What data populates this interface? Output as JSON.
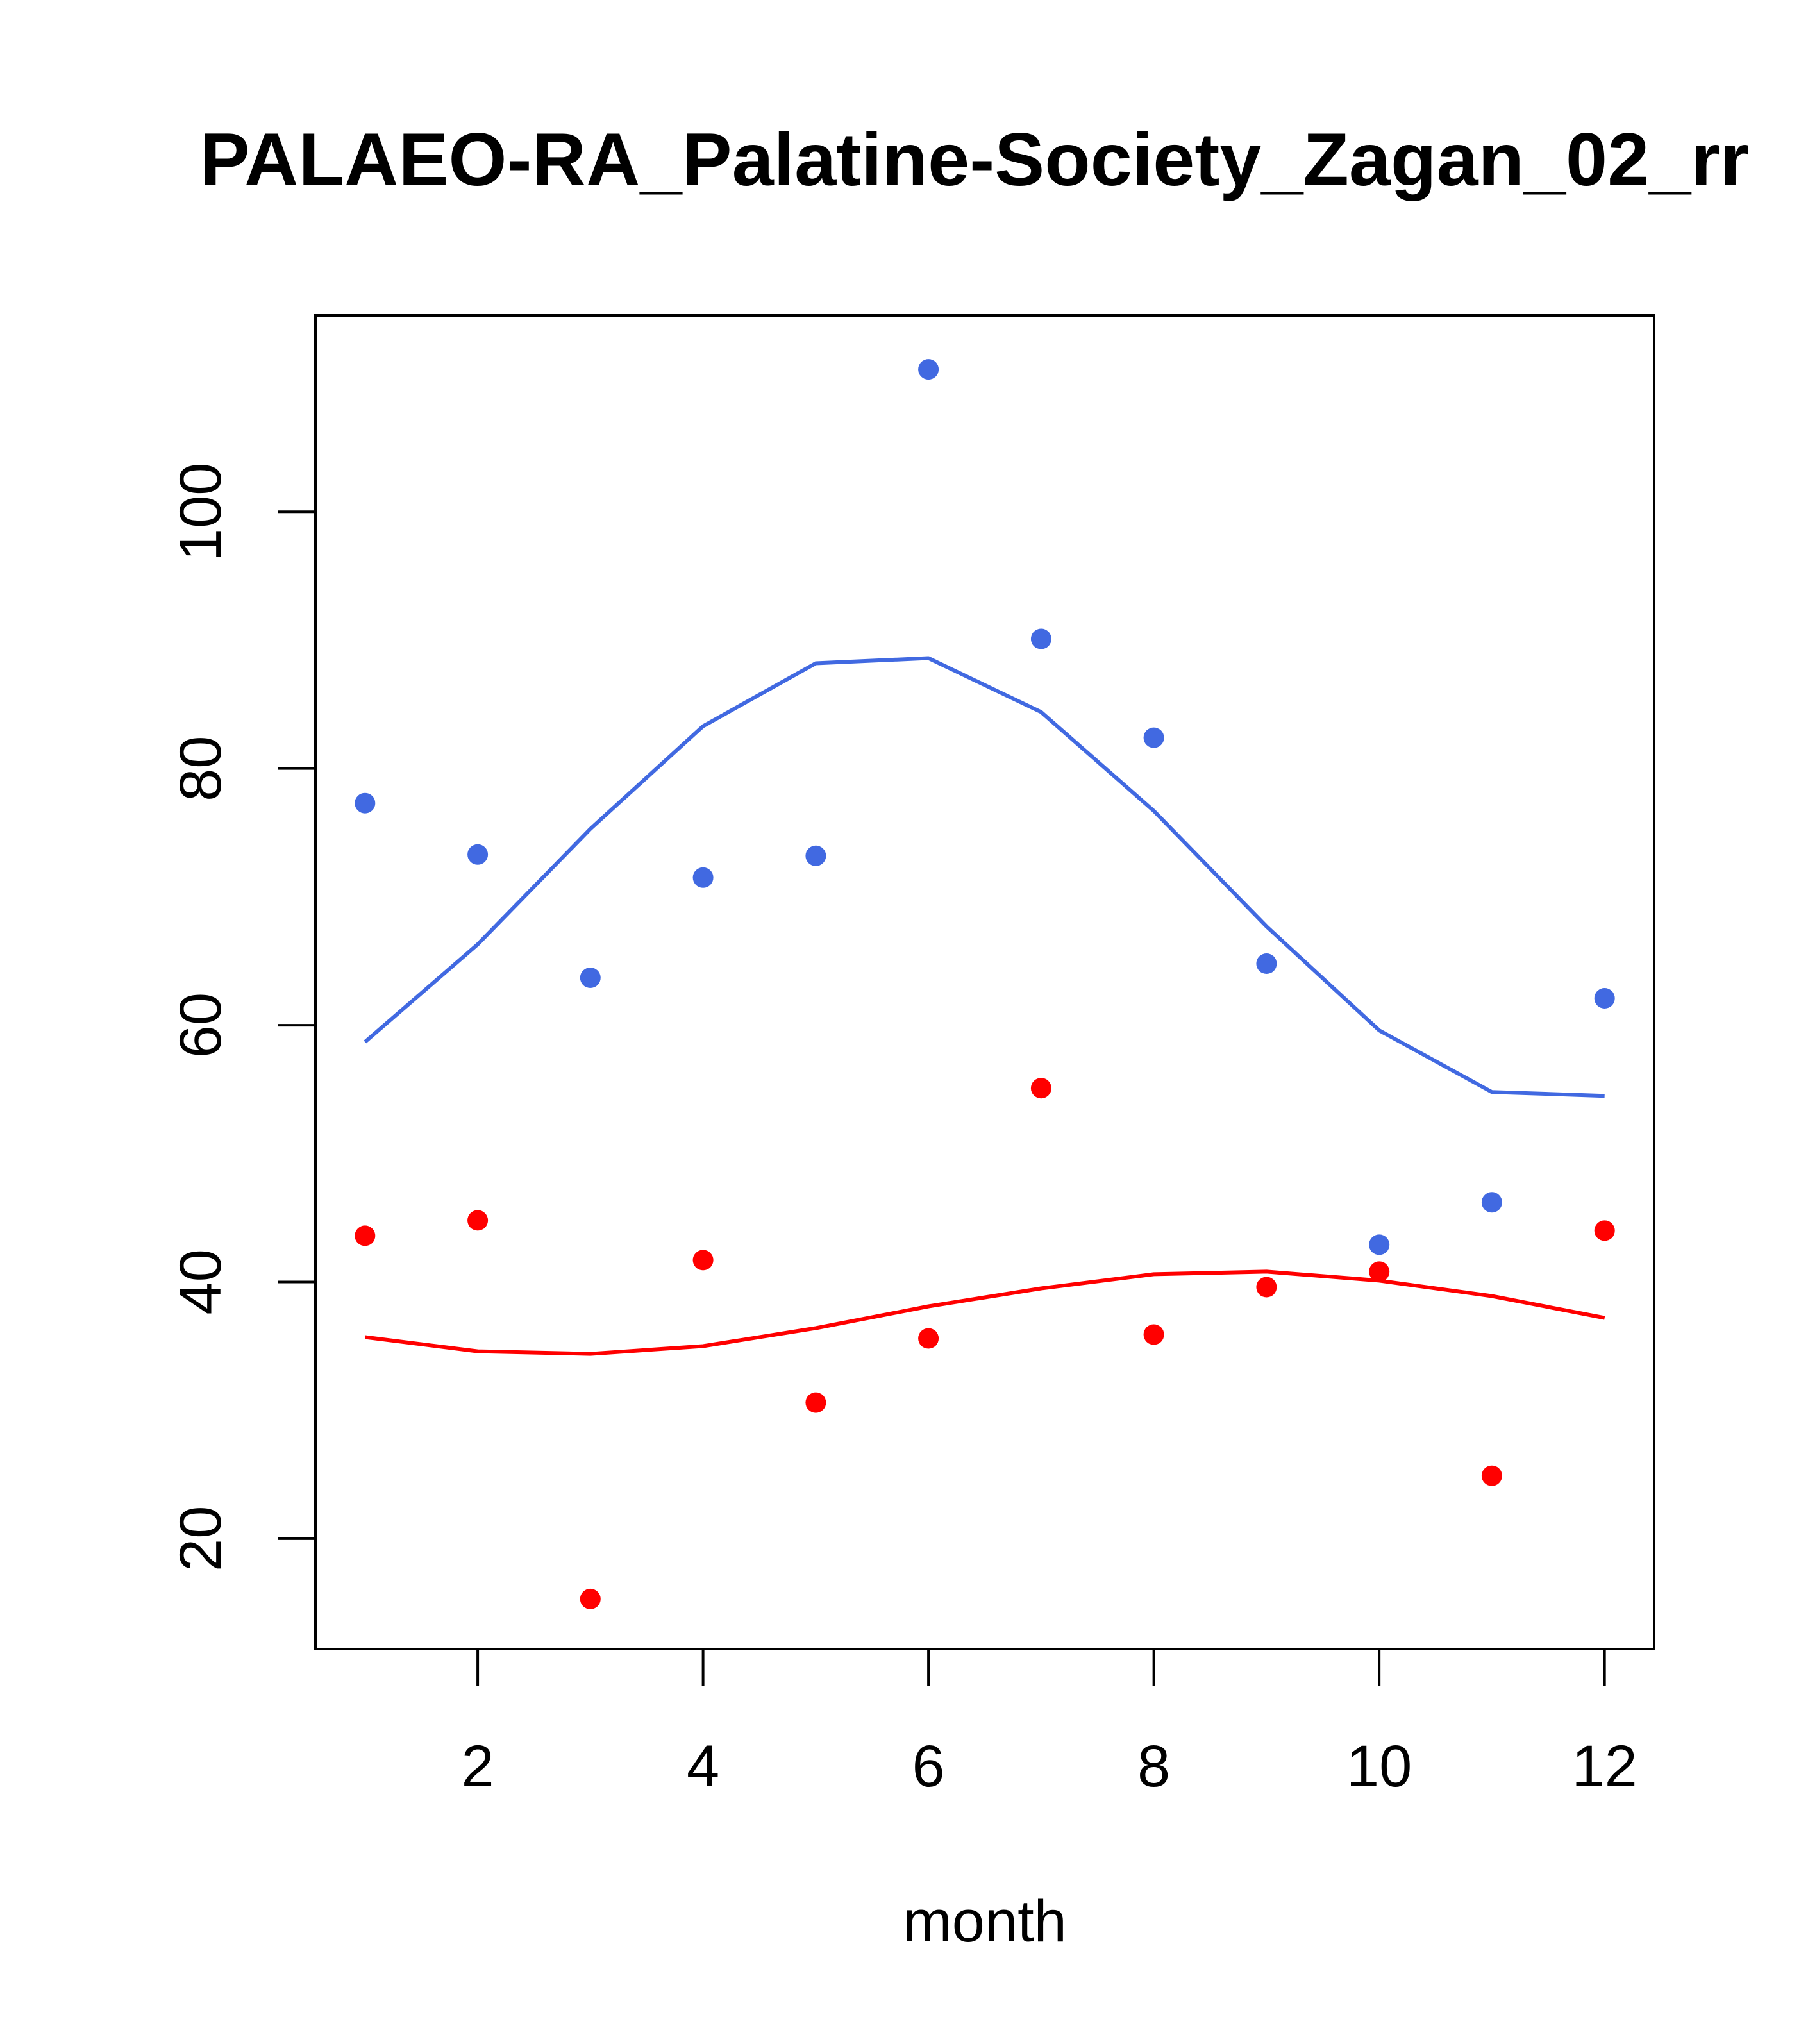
{
  "chart_data": {
    "type": "scatter",
    "title": "PALAEO-RA_Palatine-Society_Zagan_02_rr",
    "xlabel": "month",
    "ylabel": "",
    "xlim": [
      0.56,
      12.44
    ],
    "ylim": [
      11.4,
      115.3
    ],
    "xticks": [
      2,
      4,
      6,
      8,
      10,
      12
    ],
    "yticks": [
      20,
      40,
      60,
      80,
      100
    ],
    "grid": false,
    "series": [
      {
        "name": "blue points",
        "kind": "points",
        "color": "#4169e1",
        "x": [
          1,
          2,
          3,
          4,
          5,
          6,
          7,
          8,
          9,
          10,
          11,
          12
        ],
        "y": [
          77.3,
          73.3,
          63.7,
          71.5,
          73.2,
          111.1,
          90.1,
          82.4,
          64.8,
          42.9,
          46.2,
          62.1
        ]
      },
      {
        "name": "blue curve",
        "kind": "line",
        "color": "#4169e1",
        "x": [
          1,
          2,
          3,
          4,
          5,
          6,
          7,
          8,
          9,
          10,
          11,
          12
        ],
        "y": [
          58.7,
          66.3,
          75.3,
          83.3,
          88.2,
          88.6,
          84.4,
          76.7,
          67.7,
          59.6,
          54.8,
          54.5
        ]
      },
      {
        "name": "red points",
        "kind": "points",
        "color": "#ff0000",
        "x": [
          1,
          2,
          3,
          4,
          5,
          6,
          7,
          8,
          9,
          10,
          11,
          12
        ],
        "y": [
          43.6,
          44.8,
          15.3,
          41.7,
          30.6,
          35.6,
          55.1,
          35.9,
          39.6,
          40.8,
          24.9,
          44.0
        ]
      },
      {
        "name": "red curve",
        "kind": "line",
        "color": "#ff0000",
        "x": [
          1,
          2,
          3,
          4,
          5,
          6,
          7,
          8,
          9,
          10,
          11,
          12
        ],
        "y": [
          35.7,
          34.6,
          34.4,
          35.0,
          36.4,
          38.1,
          39.5,
          40.6,
          40.8,
          40.1,
          38.9,
          37.2
        ]
      }
    ]
  }
}
